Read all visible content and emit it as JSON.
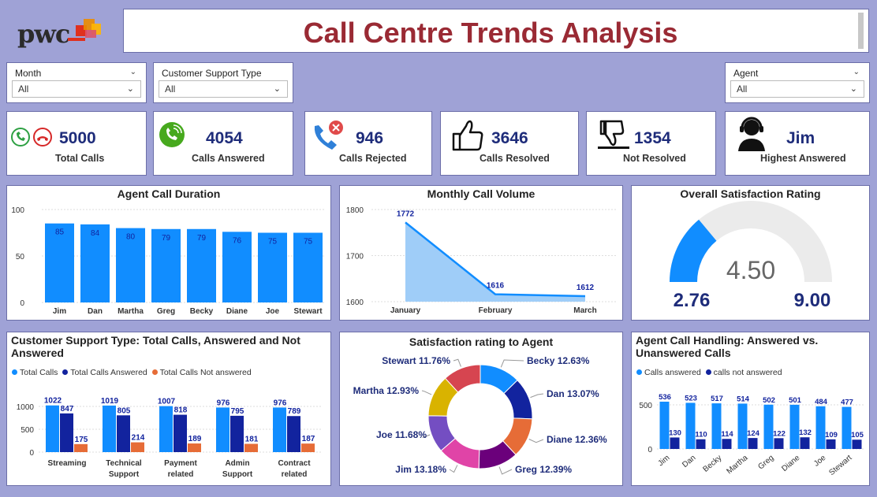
{
  "header": {
    "title": "Call Centre Trends Analysis",
    "logo_text": "pwc"
  },
  "slicers": {
    "month": {
      "label": "Month",
      "value": "All"
    },
    "support_type": {
      "label": "Customer Support Type",
      "value": "All"
    },
    "agent": {
      "label": "Agent",
      "value": "All"
    }
  },
  "kpis": [
    {
      "value": "5000",
      "label": "Total Calls",
      "icon": "phone-accept-reject-icon"
    },
    {
      "value": "4054",
      "label": "Calls Answered",
      "icon": "phone-ringing-icon"
    },
    {
      "value": "946",
      "label": "Calls Rejected",
      "icon": "phone-rejected-icon"
    },
    {
      "value": "3646",
      "label": "Calls Resolved",
      "icon": "thumbs-up-icon"
    },
    {
      "value": "1354",
      "label": "Not Resolved",
      "icon": "thumbs-down-icon"
    },
    {
      "value": "Jim",
      "label": "Highest Answered",
      "icon": "agent-headset-icon"
    }
  ],
  "colors": {
    "blue": "#118dff",
    "navy": "#12239e",
    "orange": "#e66c37",
    "title_red": "#9a2a34",
    "kpi_num": "#1e2c7a"
  },
  "agent_duration": {
    "title": "Agent Call Duration",
    "chart_data": {
      "type": "bar",
      "categories": [
        "Jim",
        "Dan",
        "Martha",
        "Greg",
        "Becky",
        "Diane",
        "Joe",
        "Stewart"
      ],
      "values": [
        85,
        84,
        80,
        79,
        79,
        76,
        75,
        75
      ],
      "yticks": [
        0,
        50,
        100
      ],
      "ylim": [
        0,
        100
      ]
    }
  },
  "monthly_volume": {
    "title": "Monthly Call Volume",
    "chart_data": {
      "type": "area",
      "categories": [
        "January",
        "February",
        "March"
      ],
      "values": [
        1772,
        1616,
        1612
      ],
      "yticks": [
        1600,
        1700,
        1800
      ],
      "ylim": [
        1600,
        1800
      ]
    }
  },
  "satisfaction_gauge": {
    "title": "Overall Satisfaction Rating",
    "value": "4.50",
    "min": "2.76",
    "max": "9.00",
    "chart_data": {
      "type": "gauge",
      "value": 4.5,
      "min": 2.76,
      "max": 9.0
    }
  },
  "support_type_chart": {
    "title": "Customer Support Type: Total Calls, Answered and Not Answered",
    "legend": [
      "Total Calls",
      "Total Calls Answered",
      "Total Calls Not answered"
    ],
    "chart_data": {
      "type": "bar",
      "categories": [
        "Streaming",
        "Technical Support",
        "Payment related",
        "Admin Support",
        "Contract related"
      ],
      "series": [
        {
          "name": "Total Calls",
          "values": [
            1022,
            1019,
            1007,
            976,
            976
          ]
        },
        {
          "name": "Total Calls Answered",
          "values": [
            847,
            805,
            818,
            795,
            789
          ]
        },
        {
          "name": "Total Calls Not answered",
          "values": [
            175,
            214,
            189,
            181,
            187
          ]
        }
      ],
      "yticks": [
        0,
        500,
        1000
      ]
    }
  },
  "agent_rating": {
    "title": "Satisfaction rating to Agent",
    "chart_data": {
      "type": "pie",
      "labels": [
        "Becky",
        "Dan",
        "Diane",
        "Greg",
        "Jim",
        "Joe",
        "Martha",
        "Stewart"
      ],
      "values": [
        12.63,
        13.07,
        12.36,
        12.39,
        13.18,
        11.68,
        12.93,
        11.76
      ],
      "display": [
        "Becky 12.63%",
        "Dan 13.07%",
        "Diane 12.36%",
        "Greg 12.39%",
        "Jim 13.18%",
        "Joe 11.68%",
        "Martha 12.93%",
        "Stewart 11.76%"
      ],
      "colors": [
        "#118dff",
        "#12239e",
        "#e66c37",
        "#6b007b",
        "#e044a7",
        "#744ec2",
        "#d9b300",
        "#d64550"
      ]
    }
  },
  "agent_handling": {
    "title": "Agent Call Handling: Answered vs. Unanswered Calls",
    "legend": [
      "Calls answered",
      "calls not answered"
    ],
    "chart_data": {
      "type": "bar",
      "categories": [
        "Jim",
        "Dan",
        "Becky",
        "Martha",
        "Greg",
        "Diane",
        "Joe",
        "Stewart"
      ],
      "series": [
        {
          "name": "Calls answered",
          "values": [
            536,
            523,
            517,
            514,
            502,
            501,
            484,
            477
          ]
        },
        {
          "name": "calls not answered",
          "values": [
            130,
            110,
            114,
            124,
            122,
            132,
            109,
            105
          ]
        }
      ],
      "yticks": [
        0,
        500
      ]
    }
  }
}
